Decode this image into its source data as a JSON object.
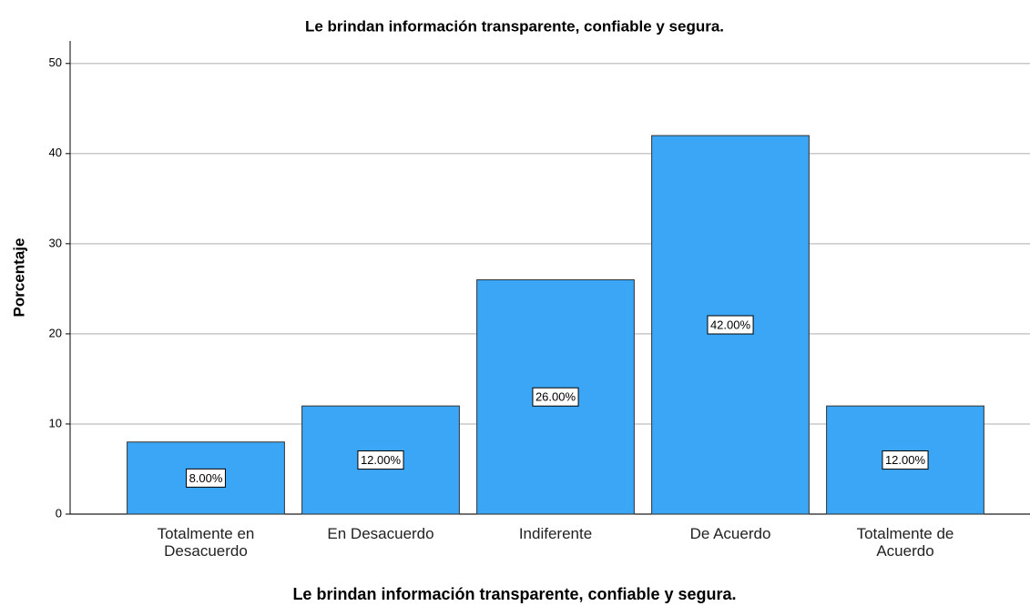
{
  "chart_data": {
    "type": "bar",
    "title": "Le brindan información transparente, confiable y segura.",
    "x_label": "Le brindan información transparente, confiable y segura.",
    "y_label": "Porcentaje",
    "categories": [
      "Totalmente en Desacuerdo",
      "En Desacuerdo",
      "Indiferente",
      "De Acuerdo",
      "Totalmente de Acuerdo"
    ],
    "values": [
      8,
      12,
      26,
      42,
      12
    ],
    "value_labels": [
      "8.00%",
      "12.00%",
      "26.00%",
      "42.00%",
      "12.00%"
    ],
    "color": "#3aa6f5",
    "ylim": [
      0,
      52.5
    ],
    "yticks": [
      0,
      10,
      20,
      30,
      40,
      50
    ],
    "grid": true
  }
}
